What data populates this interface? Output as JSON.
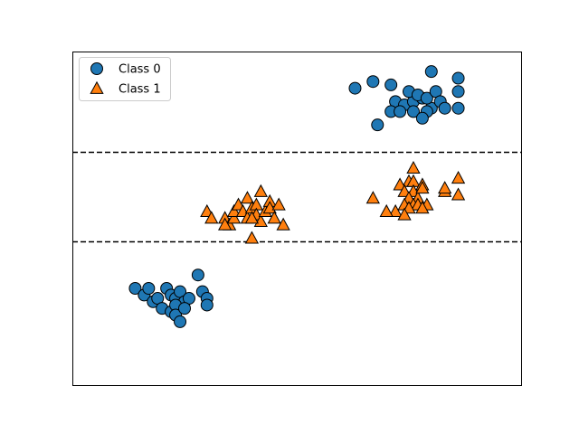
{
  "chart_data": {
    "type": "scatter",
    "xlim": [
      0,
      10
    ],
    "ylim": [
      -2,
      8
    ],
    "grid": false,
    "show_ticks": false,
    "legend": {
      "placement": "top-left"
    },
    "decision_lines": [
      5,
      2.3
    ],
    "series": [
      {
        "name": "Class 0",
        "marker": "circle",
        "color": "#1f77b4",
        "points": [
          [
            6.3,
            6.9
          ],
          [
            6.7,
            7.1
          ],
          [
            7.1,
            7.0
          ],
          [
            7.2,
            6.5
          ],
          [
            7.4,
            6.4
          ],
          [
            7.6,
            6.5
          ],
          [
            7.8,
            6.6
          ],
          [
            8.0,
            6.3
          ],
          [
            7.5,
            6.8
          ],
          [
            7.7,
            6.7
          ],
          [
            7.9,
            6.6
          ],
          [
            8.1,
            6.8
          ],
          [
            8.2,
            6.5
          ],
          [
            7.1,
            6.2
          ],
          [
            7.3,
            6.2
          ],
          [
            7.6,
            6.2
          ],
          [
            7.9,
            6.2
          ],
          [
            8.3,
            6.3
          ],
          [
            6.8,
            5.8
          ],
          [
            7.8,
            6.0
          ],
          [
            8.6,
            6.3
          ],
          [
            8.6,
            6.8
          ],
          [
            8.6,
            7.2
          ],
          [
            8.0,
            7.4
          ],
          [
            1.4,
            0.9
          ],
          [
            1.6,
            0.7
          ],
          [
            1.7,
            0.9
          ],
          [
            1.8,
            0.5
          ],
          [
            1.9,
            0.6
          ],
          [
            2.1,
            0.9
          ],
          [
            2.2,
            0.7
          ],
          [
            2.3,
            0.6
          ],
          [
            2.4,
            0.8
          ],
          [
            2.5,
            0.5
          ],
          [
            2.0,
            0.3
          ],
          [
            2.2,
            0.2
          ],
          [
            2.3,
            0.4
          ],
          [
            2.3,
            0.1
          ],
          [
            2.4,
            -0.1
          ],
          [
            2.6,
            0.6
          ],
          [
            2.8,
            1.3
          ],
          [
            2.9,
            0.8
          ],
          [
            3.0,
            0.6
          ],
          [
            3.0,
            0.4
          ],
          [
            2.5,
            0.3
          ]
        ]
      },
      {
        "name": "Class 1",
        "marker": "triangle",
        "color": "#ff7f0e",
        "points": [
          [
            7.6,
            4.5
          ],
          [
            7.5,
            4.1
          ],
          [
            7.6,
            4.1
          ],
          [
            7.8,
            4.0
          ],
          [
            7.3,
            4.0
          ],
          [
            7.4,
            3.8
          ],
          [
            7.6,
            3.8
          ],
          [
            7.5,
            3.6
          ],
          [
            7.7,
            3.6
          ],
          [
            7.8,
            3.9
          ],
          [
            7.4,
            3.4
          ],
          [
            7.6,
            3.4
          ],
          [
            7.7,
            3.4
          ],
          [
            7.9,
            3.4
          ],
          [
            7.2,
            3.2
          ],
          [
            7.5,
            3.3
          ],
          [
            8.3,
            3.8
          ],
          [
            8.3,
            3.9
          ],
          [
            8.6,
            4.2
          ],
          [
            8.6,
            3.7
          ],
          [
            6.7,
            3.6
          ],
          [
            7.0,
            3.2
          ],
          [
            7.4,
            3.1
          ],
          [
            7.8,
            3.3
          ],
          [
            3.0,
            3.2
          ],
          [
            3.1,
            3.0
          ],
          [
            3.4,
            3.0
          ],
          [
            3.5,
            2.8
          ],
          [
            3.6,
            3.0
          ],
          [
            3.6,
            3.2
          ],
          [
            3.7,
            3.4
          ],
          [
            3.8,
            3.2
          ],
          [
            3.9,
            3.0
          ],
          [
            3.9,
            3.6
          ],
          [
            4.0,
            3.3
          ],
          [
            4.1,
            3.4
          ],
          [
            4.1,
            3.1
          ],
          [
            4.2,
            2.9
          ],
          [
            4.3,
            3.2
          ],
          [
            4.4,
            3.5
          ],
          [
            4.4,
            3.3
          ],
          [
            4.5,
            3.0
          ],
          [
            4.6,
            3.4
          ],
          [
            4.7,
            2.8
          ],
          [
            4.0,
            2.4
          ],
          [
            3.4,
            2.8
          ],
          [
            4.2,
            3.8
          ],
          [
            4.0,
            3.0
          ]
        ]
      }
    ]
  }
}
